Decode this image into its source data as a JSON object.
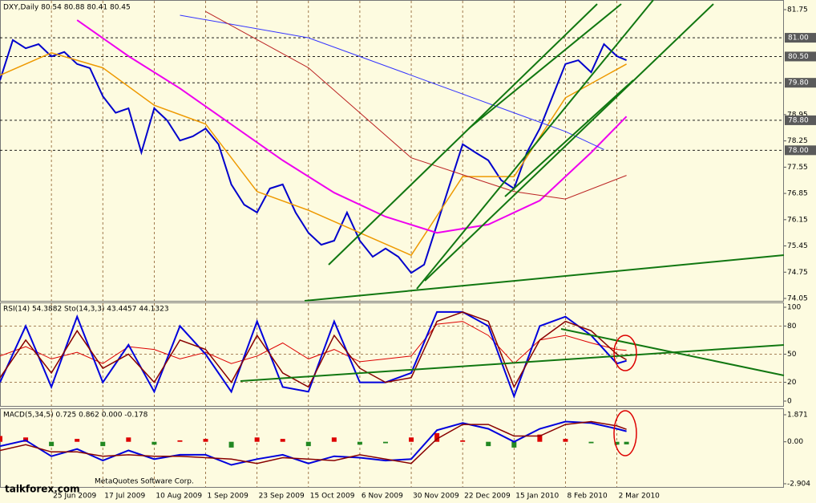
{
  "chart_data": [
    {
      "type": "line",
      "title": "DXY,Daily  80.54 80.88 80.41 80.45",
      "ylim": [
        74.05,
        81.75
      ],
      "xlim": [
        0,
        244
      ],
      "yticks": [
        74.05,
        74.75,
        75.45,
        76.15,
        76.85,
        77.55,
        78.25,
        78.95,
        81.75
      ],
      "levels": [
        {
          "value": 81.0,
          "label": "81.00"
        },
        {
          "value": 80.5,
          "label": "80.50"
        },
        {
          "value": 79.8,
          "label": "79.80"
        },
        {
          "value": 78.8,
          "label": "78.80"
        },
        {
          "value": 78.0,
          "label": "78.00"
        }
      ],
      "series": [
        {
          "color": "#0000cc",
          "width": 2,
          "x": [
            0,
            4,
            8,
            12,
            16,
            20,
            24,
            28,
            32,
            36,
            40,
            44,
            48,
            52,
            56,
            60,
            64,
            68,
            72,
            76,
            80,
            84,
            88,
            92,
            96,
            100,
            104,
            108,
            112,
            116,
            120,
            124,
            128,
            132,
            136,
            140,
            144,
            148,
            152,
            156,
            160,
            164,
            168,
            172,
            176,
            180,
            184,
            188,
            192,
            195
          ],
          "values": [
            79.87,
            80.94,
            80.72,
            80.83,
            80.5,
            80.62,
            80.3,
            80.19,
            79.44,
            79.0,
            79.12,
            77.94,
            79.12,
            78.8,
            78.26,
            78.37,
            78.58,
            78.16,
            77.09,
            76.55,
            76.34,
            76.98,
            77.09,
            76.34,
            75.8,
            75.48,
            75.59,
            76.34,
            75.59,
            75.16,
            75.38,
            75.16,
            74.73,
            74.95,
            76.02,
            77.09,
            78.16,
            77.94,
            77.73,
            77.2,
            76.98,
            77.94,
            78.58,
            79.44,
            80.3,
            80.4,
            80.08,
            80.83,
            80.51,
            80.4
          ]
        },
        {
          "color": "#ee9900",
          "width": 1.5,
          "x": [
            0,
            16,
            32,
            48,
            64,
            80,
            96,
            112,
            128,
            144,
            160,
            176,
            195
          ],
          "values": [
            80.0,
            80.6,
            80.2,
            79.2,
            78.7,
            76.9,
            76.4,
            75.8,
            75.2,
            77.3,
            77.3,
            79.4,
            80.3
          ]
        },
        {
          "color": "#ee00ee",
          "width": 2,
          "x": [
            24,
            40,
            56,
            72,
            88,
            104,
            120,
            136,
            152,
            168,
            184,
            195
          ],
          "values": [
            81.47,
            80.51,
            79.65,
            78.69,
            77.73,
            76.87,
            76.23,
            75.8,
            76.02,
            76.66,
            77.94,
            78.9
          ]
        },
        {
          "color": "#3333ff",
          "width": 1,
          "x": [
            56,
            96,
            128,
            160,
            176,
            188
          ],
          "values": [
            81.6,
            81.0,
            80.0,
            79.0,
            78.5,
            78.02
          ]
        },
        {
          "color": "#bb2222",
          "width": 1,
          "x": [
            64,
            96,
            128,
            160,
            176,
            195
          ],
          "values": [
            81.7,
            80.2,
            77.8,
            76.9,
            76.7,
            77.33
          ]
        }
      ]
    },
    {
      "type": "line",
      "title": "RSI(14) 54.3882  Sto(14,3,3) 43.4457 44.1323",
      "ylim": [
        0,
        100
      ],
      "yticks": [
        0,
        20,
        50,
        80,
        100
      ],
      "grid_levels": [
        20,
        50,
        80
      ],
      "xlim": [
        0,
        244
      ],
      "x": [
        0,
        8,
        16,
        24,
        32,
        40,
        48,
        56,
        64,
        72,
        80,
        88,
        96,
        104,
        112,
        120,
        128,
        136,
        144,
        152,
        160,
        168,
        176,
        184,
        192,
        195
      ],
      "series": [
        {
          "color": "#dd0000",
          "width": 1,
          "values": [
            48,
            58,
            45,
            52,
            40,
            58,
            55,
            45,
            52,
            40,
            48,
            62,
            45,
            55,
            42,
            45,
            48,
            82,
            85,
            70,
            40,
            65,
            70,
            62,
            55,
            54
          ]
        },
        {
          "color": "#0000dd",
          "width": 2,
          "values": [
            20,
            80,
            15,
            90,
            20,
            60,
            10,
            80,
            50,
            10,
            85,
            15,
            10,
            85,
            20,
            20,
            30,
            95,
            95,
            80,
            5,
            80,
            90,
            70,
            40,
            43
          ]
        },
        {
          "color": "#880000",
          "width": 1.5,
          "values": [
            25,
            65,
            30,
            75,
            35,
            50,
            20,
            65,
            55,
            20,
            70,
            30,
            15,
            70,
            35,
            20,
            25,
            85,
            95,
            85,
            15,
            65,
            85,
            75,
            50,
            44
          ]
        }
      ]
    },
    {
      "type": "line",
      "title": "MACD(5,34,5) 0.725 0.862 0.000 -0.178",
      "ylim": [
        -2.904,
        1.871
      ],
      "yticks": [
        {
          "value": 1.871,
          "label": "1.871"
        },
        {
          "value": 0,
          "label": "0.00"
        },
        {
          "value": -2.904,
          "label": "-2.904"
        }
      ],
      "xlim": [
        0,
        244
      ],
      "xticks": [
        {
          "value": 16,
          "label": "25 Jun 2009"
        },
        {
          "value": 32,
          "label": "17 Jul 2009"
        },
        {
          "value": 48,
          "label": "10 Aug 2009"
        },
        {
          "value": 64,
          "label": "1 Sep 2009"
        },
        {
          "value": 80,
          "label": "23 Sep 2009"
        },
        {
          "value": 96,
          "label": "15 Oct 2009"
        },
        {
          "value": 112,
          "label": "6 Nov 2009"
        },
        {
          "value": 128,
          "label": "30 Nov 2009"
        },
        {
          "value": 144,
          "label": "22 Dec 2009"
        },
        {
          "value": 160,
          "label": "15 Jan 2010"
        },
        {
          "value": 176,
          "label": "8 Feb 2010"
        },
        {
          "value": 192,
          "label": "2 Mar 2010"
        }
      ],
      "x": [
        0,
        8,
        16,
        24,
        32,
        40,
        48,
        56,
        64,
        72,
        80,
        88,
        96,
        104,
        112,
        120,
        128,
        136,
        144,
        152,
        160,
        168,
        176,
        184,
        192,
        195
      ],
      "series": [
        {
          "style": "bar",
          "color": "#dd0000",
          "negative_color": "#228822",
          "values": [
            0.4,
            0.3,
            -0.3,
            0.2,
            -0.3,
            0.3,
            -0.2,
            0.1,
            0.2,
            -0.4,
            0.3,
            0.2,
            -0.3,
            0.3,
            -0.2,
            -0.1,
            0.3,
            0.6,
            0.1,
            -0.3,
            -0.4,
            0.5,
            0.2,
            -0.1,
            -0.2,
            -0.178
          ]
        },
        {
          "style": "line",
          "color": "#0000dd",
          "width": 2,
          "values": [
            -0.3,
            0.1,
            -1.0,
            -0.5,
            -1.3,
            -0.6,
            -1.2,
            -0.9,
            -0.9,
            -1.6,
            -1.2,
            -0.9,
            -1.5,
            -1.0,
            -1.1,
            -1.3,
            -1.2,
            0.8,
            1.3,
            0.9,
            0.0,
            0.9,
            1.4,
            1.3,
            0.9,
            0.725
          ]
        },
        {
          "style": "line",
          "color": "#880000",
          "width": 1.5,
          "values": [
            -0.6,
            -0.2,
            -0.7,
            -0.7,
            -1.0,
            -0.9,
            -1.0,
            -1.0,
            -1.1,
            -1.2,
            -1.5,
            -1.1,
            -1.2,
            -1.3,
            -0.9,
            -1.2,
            -1.5,
            0.2,
            1.2,
            1.2,
            0.4,
            0.4,
            1.2,
            1.4,
            1.1,
            0.862
          ]
        }
      ]
    }
  ],
  "footer": {
    "site": "talkforex.com",
    "copyright": "MetaQuotes Software Corp."
  }
}
